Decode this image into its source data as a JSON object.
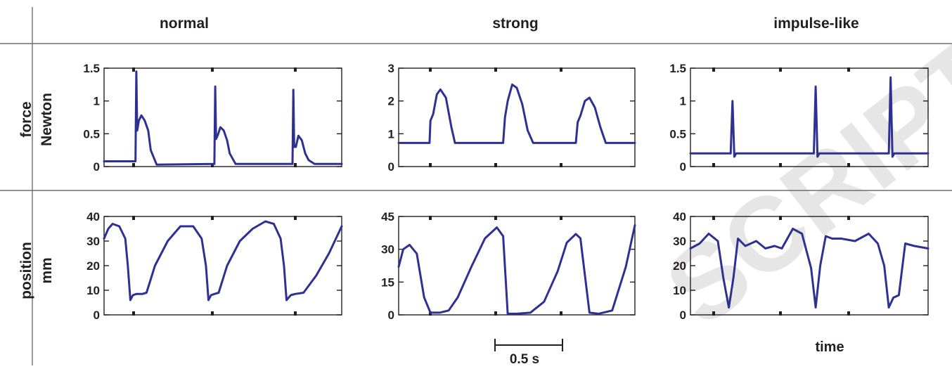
{
  "columns": [
    "normal",
    "strong",
    "impulse-like"
  ],
  "rows": [
    {
      "name": "force",
      "unit": "Newton"
    },
    {
      "name": "position",
      "unit": "mm"
    }
  ],
  "scale_bar": {
    "label": "0.5 s",
    "seconds": 0.5
  },
  "time_label": "time",
  "watermark": "SCRIPT",
  "colors": {
    "series": "#2e3192",
    "axes": "#231f20",
    "rules": "#6d6e71",
    "watermark": "#e6e6e6"
  },
  "chart_data": [
    {
      "type": "line",
      "panel": "force-normal",
      "ylim": [
        0,
        1.5
      ],
      "yticks": [
        "0",
        "0.5",
        "1",
        "1.5"
      ],
      "x": [
        0,
        0.37,
        0.38,
        0.39,
        0.41,
        0.44,
        0.48,
        0.52,
        0.55,
        0.62,
        1.3,
        1.31,
        1.32,
        1.34,
        1.37,
        1.41,
        1.45,
        1.48,
        1.55,
        2.22,
        2.23,
        2.24,
        2.26,
        2.29,
        2.33,
        2.37,
        2.41,
        2.48,
        2.8
      ],
      "y": [
        0.08,
        0.08,
        1.45,
        0.55,
        0.7,
        0.78,
        0.7,
        0.55,
        0.25,
        0.03,
        0.04,
        1.22,
        0.42,
        0.48,
        0.6,
        0.55,
        0.4,
        0.2,
        0.04,
        0.04,
        1.17,
        0.3,
        0.3,
        0.47,
        0.4,
        0.2,
        0.1,
        0.04,
        0.04
      ]
    },
    {
      "type": "line",
      "panel": "force-strong",
      "ylim": [
        0,
        3
      ],
      "yticks": [
        "0",
        "1",
        "2",
        "3"
      ],
      "x": [
        0,
        0.34,
        0.35,
        0.38,
        0.42,
        0.46,
        0.52,
        0.58,
        0.62,
        1.15,
        1.17,
        1.2,
        1.25,
        1.3,
        1.36,
        1.42,
        1.48,
        1.95,
        1.97,
        2.0,
        2.05,
        2.1,
        2.16,
        2.22,
        2.28,
        2.6
      ],
      "y": [
        0.72,
        0.72,
        1.4,
        1.6,
        2.2,
        2.35,
        2.1,
        1.2,
        0.72,
        0.72,
        1.5,
        2.0,
        2.5,
        2.4,
        1.9,
        1.1,
        0.72,
        0.72,
        1.35,
        1.55,
        2.0,
        2.1,
        1.8,
        1.2,
        0.72,
        0.72
      ]
    },
    {
      "type": "line",
      "panel": "force-impulse-like",
      "ylim": [
        0,
        1.5
      ],
      "yticks": [
        "0",
        "0.5",
        "1",
        "1.5"
      ],
      "x": [
        0,
        0.44,
        0.46,
        0.48,
        0.5,
        0.52,
        1.35,
        1.37,
        1.39,
        1.41,
        1.43,
        2.17,
        2.19,
        2.21,
        2.23,
        2.25,
        2.6
      ],
      "y": [
        0.2,
        0.2,
        1.0,
        0.15,
        0.2,
        0.2,
        0.2,
        1.22,
        0.15,
        0.2,
        0.2,
        0.2,
        1.36,
        0.15,
        0.2,
        0.2,
        0.2
      ]
    },
    {
      "type": "line",
      "panel": "position-normal",
      "ylim": [
        0,
        40
      ],
      "yticks": [
        "0",
        "10",
        "20",
        "30",
        "40"
      ],
      "x": [
        0,
        0.05,
        0.1,
        0.18,
        0.25,
        0.28,
        0.31,
        0.34,
        0.38,
        0.45,
        0.5,
        0.6,
        0.75,
        0.9,
        1.05,
        1.15,
        1.2,
        1.23,
        1.26,
        1.3,
        1.35,
        1.45,
        1.6,
        1.75,
        1.9,
        2.0,
        2.08,
        2.12,
        2.15,
        2.2,
        2.25,
        2.35,
        2.5,
        2.65,
        2.8
      ],
      "y": [
        31,
        35,
        37,
        36,
        31,
        20,
        6,
        8,
        8.5,
        8.5,
        9,
        20,
        30,
        36,
        36,
        31,
        20,
        6,
        8,
        8.5,
        9,
        20,
        30,
        35,
        38,
        37,
        31,
        20,
        6,
        8,
        8.5,
        9,
        16,
        25,
        36
      ]
    },
    {
      "type": "line",
      "panel": "position-strong",
      "ylim": [
        0,
        45
      ],
      "yticks": [
        "0",
        "15",
        "30",
        "45"
      ],
      "x": [
        0,
        0.05,
        0.12,
        0.2,
        0.28,
        0.35,
        0.45,
        0.55,
        0.65,
        0.8,
        0.95,
        1.08,
        1.15,
        1.2,
        1.3,
        1.45,
        1.6,
        1.75,
        1.85,
        1.95,
        2.0,
        2.1,
        2.2,
        2.35,
        2.5,
        2.6
      ],
      "y": [
        22,
        30,
        32,
        28,
        8,
        1,
        1,
        2,
        8,
        22,
        35,
        40,
        36,
        0.5,
        0.5,
        1,
        6,
        20,
        33,
        37,
        35,
        1,
        0.5,
        2,
        22,
        41
      ]
    },
    {
      "type": "line",
      "panel": "position-impulse-like",
      "ylim": [
        0,
        40
      ],
      "yticks": [
        "0",
        "10",
        "20",
        "30",
        "40"
      ],
      "x": [
        0,
        0.1,
        0.2,
        0.3,
        0.36,
        0.42,
        0.47,
        0.52,
        0.6,
        0.72,
        0.82,
        0.92,
        1.0,
        1.12,
        1.22,
        1.32,
        1.37,
        1.42,
        1.48,
        1.55,
        1.65,
        1.8,
        1.95,
        2.05,
        2.12,
        2.17,
        2.22,
        2.28,
        2.35,
        2.45,
        2.6
      ],
      "y": [
        27,
        29,
        33,
        30,
        15,
        3,
        15,
        31,
        28,
        30,
        27,
        28,
        27,
        35,
        33,
        19,
        3,
        20,
        32,
        31,
        31,
        30,
        33,
        29,
        20,
        3,
        7,
        8,
        29,
        28,
        27
      ]
    }
  ]
}
